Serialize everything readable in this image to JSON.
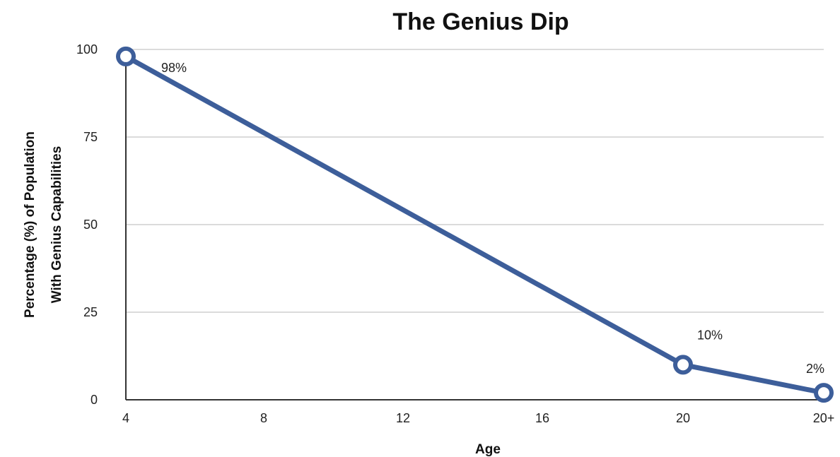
{
  "chart_data": {
    "type": "line",
    "title": "The Genius Dip",
    "xlabel": "Age",
    "ylabel_lines": [
      "Percentage (%) of Population",
      "With Genius Capabilities"
    ],
    "categories": [
      "4",
      "8",
      "12",
      "16",
      "20",
      "20+"
    ],
    "ylim": [
      0,
      100
    ],
    "yticks": [
      0,
      25,
      50,
      75,
      100
    ],
    "grid": true,
    "series": [
      {
        "points": [
          {
            "x": "4",
            "y": 98,
            "label": "98%"
          },
          {
            "x": "20",
            "y": 10,
            "label": "10%"
          },
          {
            "x": "20+",
            "y": 2,
            "label": "2%"
          }
        ]
      }
    ],
    "colors": {
      "line": "#3D5E9A",
      "marker_fill": "#ffffff",
      "grid": "#cfcfcf",
      "axis": "#333333"
    }
  }
}
